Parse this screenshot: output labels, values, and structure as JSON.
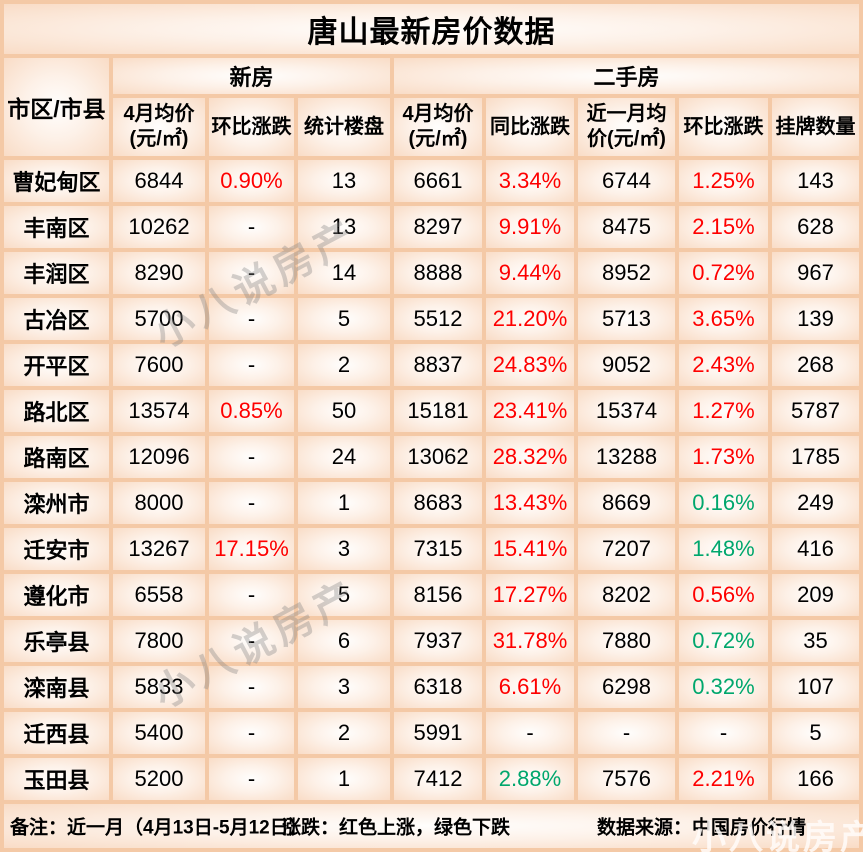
{
  "chart_data": {
    "type": "table",
    "title": "唐山最新房价数据",
    "region_header": "市区/市县",
    "groups": [
      {
        "label": "新房",
        "columns": [
          "4月均价(元/㎡)",
          "环比涨跌",
          "统计楼盘"
        ]
      },
      {
        "label": "二手房",
        "columns": [
          "4月均价(元/㎡)",
          "同比涨跌",
          "近一月均价(元/㎡)",
          "环比涨跌",
          "挂牌数量"
        ]
      }
    ],
    "rows": [
      {
        "region": "曹妃甸区",
        "cells": [
          {
            "v": "6844"
          },
          {
            "v": "0.90%",
            "c": "red"
          },
          {
            "v": "13"
          },
          {
            "v": "6661"
          },
          {
            "v": "3.34%",
            "c": "red"
          },
          {
            "v": "6744"
          },
          {
            "v": "1.25%",
            "c": "red"
          },
          {
            "v": "143"
          }
        ]
      },
      {
        "region": "丰南区",
        "cells": [
          {
            "v": "10262"
          },
          {
            "v": "-"
          },
          {
            "v": "13"
          },
          {
            "v": "8297"
          },
          {
            "v": "9.91%",
            "c": "red"
          },
          {
            "v": "8475"
          },
          {
            "v": "2.15%",
            "c": "red"
          },
          {
            "v": "628"
          }
        ]
      },
      {
        "region": "丰润区",
        "cells": [
          {
            "v": "8290"
          },
          {
            "v": "-"
          },
          {
            "v": "14"
          },
          {
            "v": "8888"
          },
          {
            "v": "9.44%",
            "c": "red"
          },
          {
            "v": "8952"
          },
          {
            "v": "0.72%",
            "c": "red"
          },
          {
            "v": "967"
          }
        ]
      },
      {
        "region": "古冶区",
        "cells": [
          {
            "v": "5700"
          },
          {
            "v": "-"
          },
          {
            "v": "5"
          },
          {
            "v": "5512"
          },
          {
            "v": "21.20%",
            "c": "red"
          },
          {
            "v": "5713"
          },
          {
            "v": "3.65%",
            "c": "red"
          },
          {
            "v": "139"
          }
        ]
      },
      {
        "region": "开平区",
        "cells": [
          {
            "v": "7600"
          },
          {
            "v": "-"
          },
          {
            "v": "2"
          },
          {
            "v": "8837"
          },
          {
            "v": "24.83%",
            "c": "red"
          },
          {
            "v": "9052"
          },
          {
            "v": "2.43%",
            "c": "red"
          },
          {
            "v": "268"
          }
        ]
      },
      {
        "region": "路北区",
        "cells": [
          {
            "v": "13574"
          },
          {
            "v": "0.85%",
            "c": "red"
          },
          {
            "v": "50"
          },
          {
            "v": "15181"
          },
          {
            "v": "23.41%",
            "c": "red"
          },
          {
            "v": "15374"
          },
          {
            "v": "1.27%",
            "c": "red"
          },
          {
            "v": "5787"
          }
        ]
      },
      {
        "region": "路南区",
        "cells": [
          {
            "v": "12096"
          },
          {
            "v": "-"
          },
          {
            "v": "24"
          },
          {
            "v": "13062"
          },
          {
            "v": "28.32%",
            "c": "red"
          },
          {
            "v": "13288"
          },
          {
            "v": "1.73%",
            "c": "red"
          },
          {
            "v": "1785"
          }
        ]
      },
      {
        "region": "滦州市",
        "cells": [
          {
            "v": "8000"
          },
          {
            "v": "-"
          },
          {
            "v": "1"
          },
          {
            "v": "8683"
          },
          {
            "v": "13.43%",
            "c": "red"
          },
          {
            "v": "8669"
          },
          {
            "v": "0.16%",
            "c": "green"
          },
          {
            "v": "249"
          }
        ]
      },
      {
        "region": "迁安市",
        "cells": [
          {
            "v": "13267"
          },
          {
            "v": "17.15%",
            "c": "red"
          },
          {
            "v": "3"
          },
          {
            "v": "7315"
          },
          {
            "v": "15.41%",
            "c": "red"
          },
          {
            "v": "7207"
          },
          {
            "v": "1.48%",
            "c": "green"
          },
          {
            "v": "416"
          }
        ]
      },
      {
        "region": "遵化市",
        "cells": [
          {
            "v": "6558"
          },
          {
            "v": "-"
          },
          {
            "v": "5"
          },
          {
            "v": "8156"
          },
          {
            "v": "17.27%",
            "c": "red"
          },
          {
            "v": "8202"
          },
          {
            "v": "0.56%",
            "c": "red"
          },
          {
            "v": "209"
          }
        ]
      },
      {
        "region": "乐亭县",
        "cells": [
          {
            "v": "7800"
          },
          {
            "v": "-"
          },
          {
            "v": "6"
          },
          {
            "v": "7937"
          },
          {
            "v": "31.78%",
            "c": "red"
          },
          {
            "v": "7880"
          },
          {
            "v": "0.72%",
            "c": "green"
          },
          {
            "v": "35"
          }
        ]
      },
      {
        "region": "滦南县",
        "cells": [
          {
            "v": "5833"
          },
          {
            "v": "-"
          },
          {
            "v": "3"
          },
          {
            "v": "6318"
          },
          {
            "v": "6.61%",
            "c": "red"
          },
          {
            "v": "6298"
          },
          {
            "v": "0.32%",
            "c": "green"
          },
          {
            "v": "107"
          }
        ]
      },
      {
        "region": "迁西县",
        "cells": [
          {
            "v": "5400"
          },
          {
            "v": "-"
          },
          {
            "v": "2"
          },
          {
            "v": "5991"
          },
          {
            "v": "-"
          },
          {
            "v": "-"
          },
          {
            "v": "-"
          },
          {
            "v": "5"
          }
        ]
      },
      {
        "region": "玉田县",
        "cells": [
          {
            "v": "5200"
          },
          {
            "v": "-"
          },
          {
            "v": "1"
          },
          {
            "v": "7412"
          },
          {
            "v": "2.88%",
            "c": "green"
          },
          {
            "v": "7576"
          },
          {
            "v": "2.21%",
            "c": "red"
          },
          {
            "v": "166"
          }
        ]
      }
    ]
  },
  "colors": {
    "rise_red": "#fe0000",
    "fall_green": "#00a76d",
    "text": "#000000",
    "grid": "#f4c9a6",
    "cell_edge": "#f9dcc6"
  },
  "footer": {
    "note": "备注：近一月（4月13日-5月12日）",
    "legend": "涨跌：红色上涨，绿色下跌",
    "source": "数据来源：中国房价行情"
  },
  "watermark": {
    "text": "小八说房产"
  }
}
